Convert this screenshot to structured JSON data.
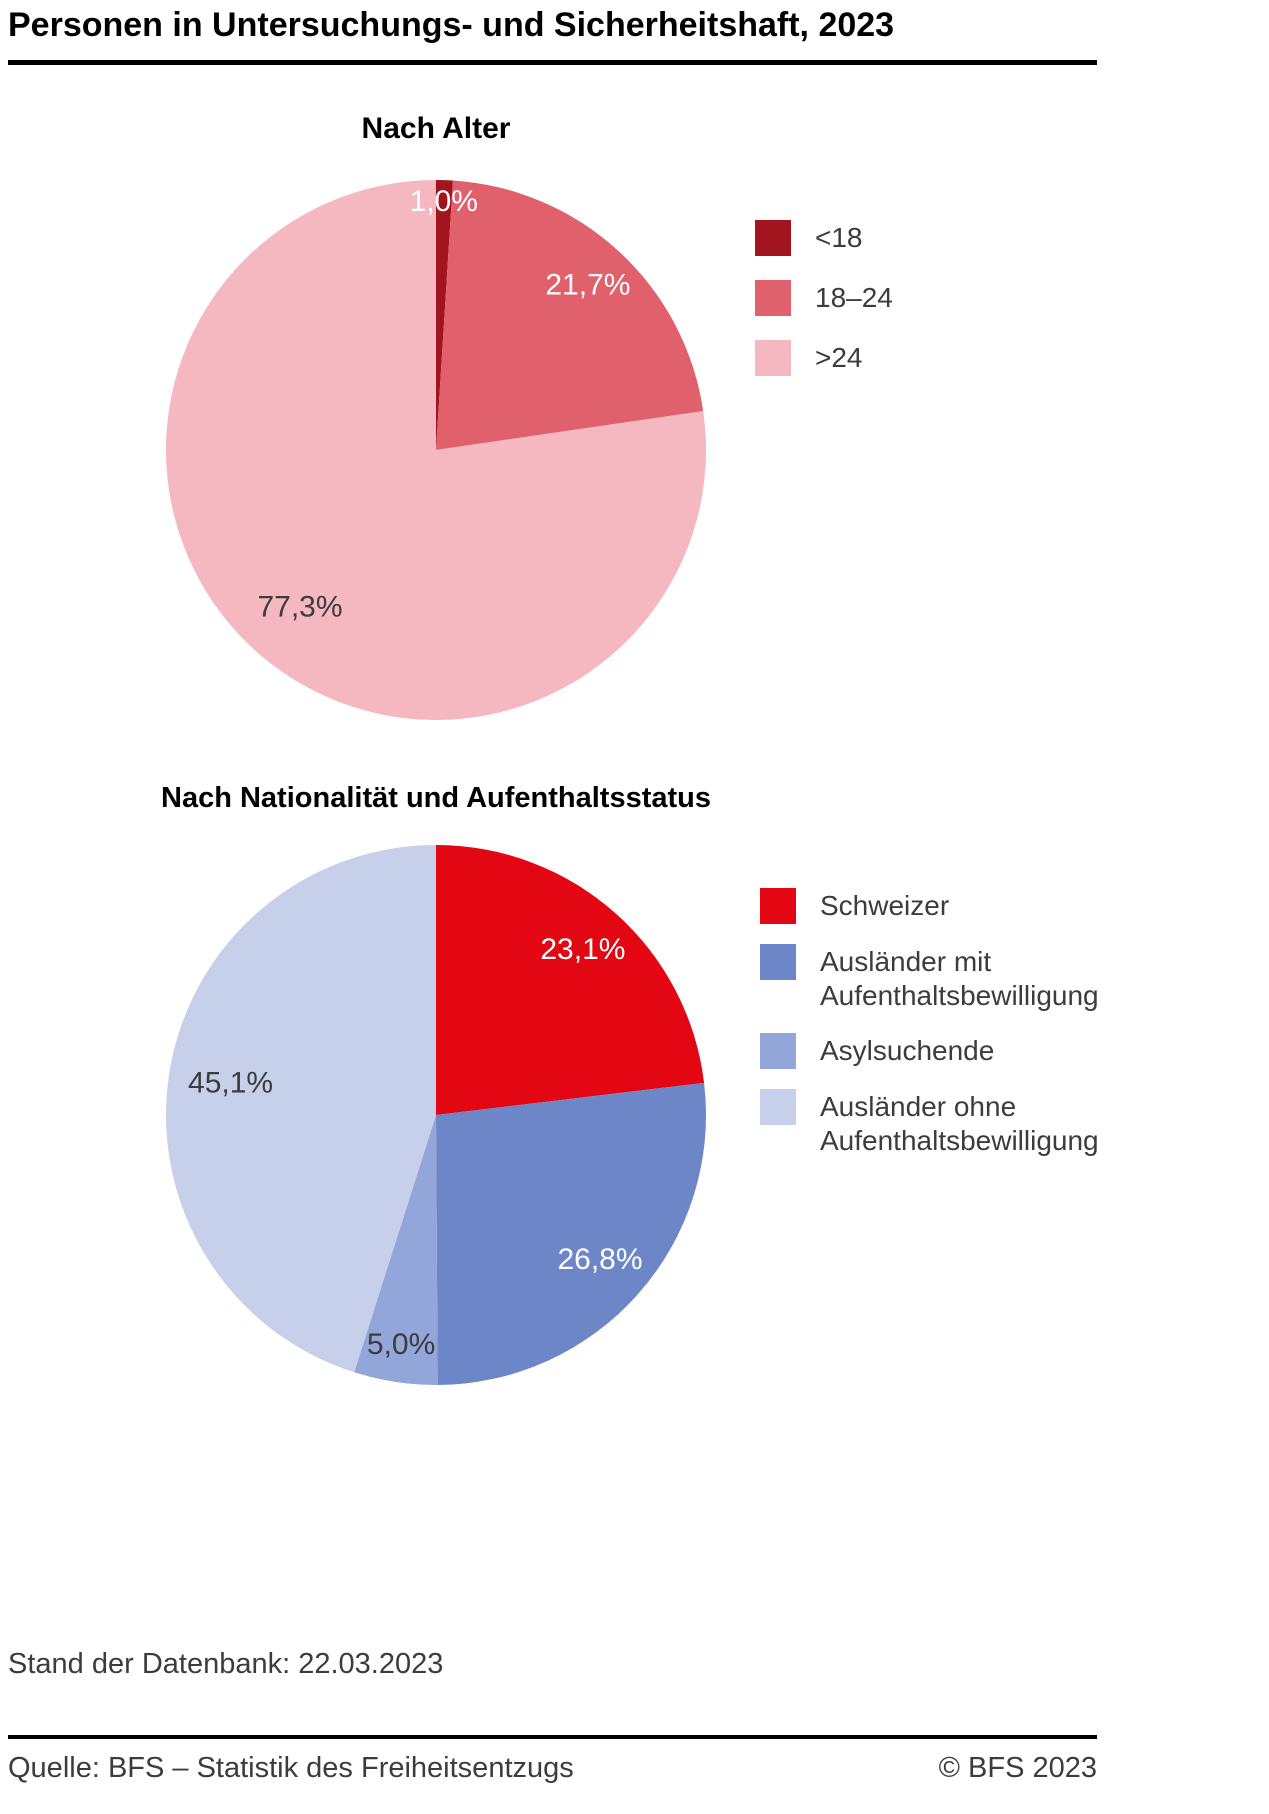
{
  "page": {
    "title": "Personen in Untersuchungs- und Sicherheitshaft, 2023",
    "status_line": "Stand der Datenbank: 22.03.2023",
    "footer": {
      "source": "Quelle: BFS – Statistik des Freiheitsentzugs",
      "copyright": "© BFS 2023"
    }
  },
  "chart_data": [
    {
      "type": "pie",
      "title": "Nach Alter",
      "start_angle_deg": 0,
      "direction": "clockwise",
      "legend_position": "right",
      "grid": false,
      "slices": [
        {
          "label": "<18",
          "value": 1.0,
          "value_label": "1,0%",
          "color": "#a2141e",
          "text_color": "#ffffff",
          "label_r": 0.92
        },
        {
          "label": "18–24",
          "value": 21.7,
          "value_label": "21,7%",
          "color": "#e0606b",
          "text_color": "#ffffff",
          "label_r": 0.83
        },
        {
          "label": ">24",
          "value": 77.3,
          "value_label": "77,3%",
          "color": "#f5b8c0",
          "text_color": "#3c3c3c",
          "label_r": 0.77
        }
      ]
    },
    {
      "type": "pie",
      "title": "Nach Nationalität und Aufenthaltsstatus",
      "start_angle_deg": 0,
      "direction": "clockwise",
      "legend_position": "right",
      "grid": false,
      "slices": [
        {
          "label": "Schweizer",
          "value": 23.1,
          "value_label": "23,1%",
          "color": "#e30613",
          "text_color": "#ffffff",
          "label_r": 0.82
        },
        {
          "label": "Ausländer mit Aufenthaltsbewilligung",
          "value": 26.8,
          "value_label": "26,8%",
          "color": "#6d86c7",
          "text_color": "#ffffff",
          "label_r": 0.81
        },
        {
          "label": "Asylsuchende",
          "value": 5.0,
          "value_label": "5,0%",
          "color": "#93a6d9",
          "text_color": "#3c3c3c",
          "label_r": 0.86
        },
        {
          "label": "Ausländer ohne Aufenthaltsbewilligung",
          "value": 45.1,
          "value_label": "45,1%",
          "color": "#c6d0ea",
          "text_color": "#3c3c3c",
          "label_r": 0.77
        }
      ]
    }
  ]
}
